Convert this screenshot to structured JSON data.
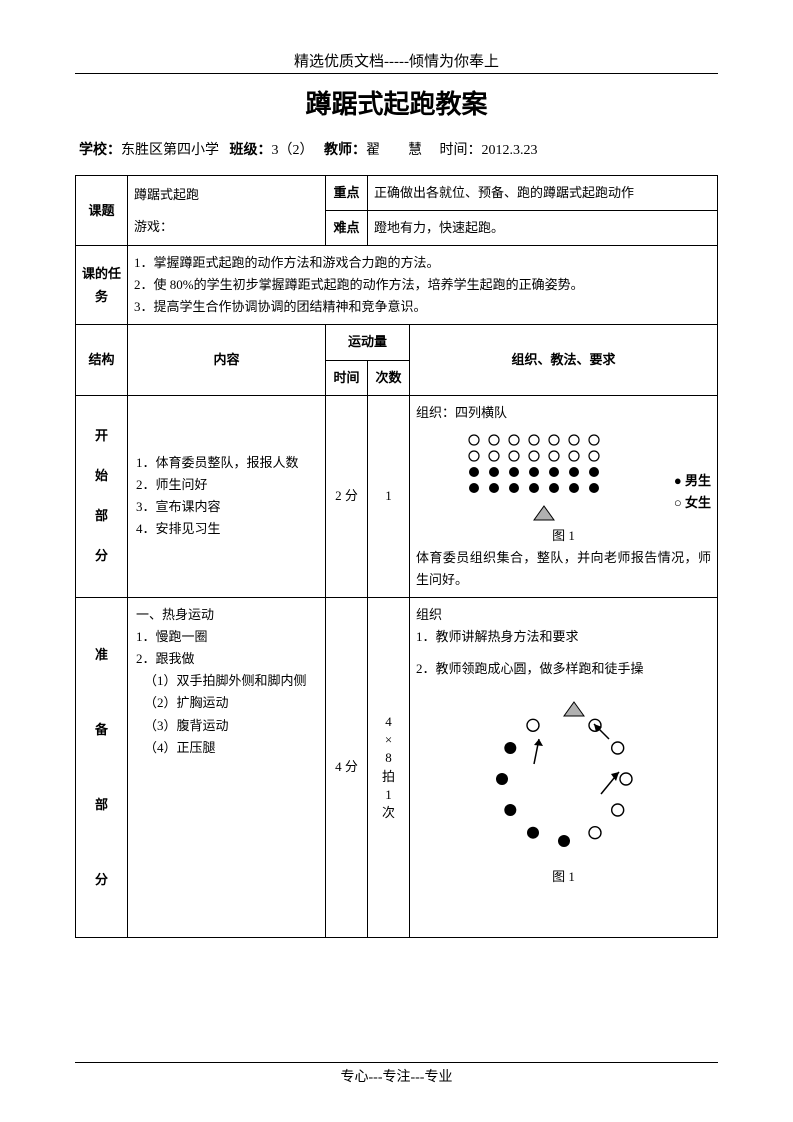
{
  "header": "精选优质文档-----倾情为你奉上",
  "title": "蹲踞式起跑教案",
  "meta": {
    "school_label": "学校：",
    "school": "东胜区第四小学",
    "class_label": "班级：",
    "class": "3（2）",
    "teacher_label": "教师：",
    "teacher": "翟　　慧",
    "time_label": "时间：",
    "time": "2012.3.23"
  },
  "row1": {
    "keti_label": "课题",
    "keti_line1": "蹲踞式起跑",
    "keti_line2": "游戏：",
    "zhongdian_label": "重点",
    "zhongdian": "正确做出各就位、预备、跑的蹲踞式起跑动作",
    "nandian_label": "难点",
    "nandian": "蹬地有力，快速起跑。"
  },
  "row2": {
    "label": "课的任务",
    "l1": "1．掌握蹲距式起跑的动作方法和游戏合力跑的方法。",
    "l2": "2．使 80%的学生初步掌握蹲距式起跑的动作方法，培养学生起跑的正确姿势。",
    "l3": "3．提高学生合作协调协调的团结精神和竞争意识。"
  },
  "header_row": {
    "jiegou": "结构",
    "neirong": "内容",
    "yundong": "运动量",
    "shijian": "时间",
    "cishu": "次数",
    "zuzhi": "组织、教法、要求"
  },
  "section1": {
    "label": "开始部分",
    "content": {
      "l1": "1．体育委员整队，报报人数",
      "l2": "2．师生问好",
      "l3": "3．宣布课内容",
      "l4": "4．安排见习生"
    },
    "time": "2 分",
    "count": "1",
    "org_title": "组织：四列横队",
    "legend_m": "男生",
    "legend_f": "女生",
    "fig": "图 1",
    "note": "体育委员组织集合，整队，并向老师报告情况，师生问好。"
  },
  "section2": {
    "label": "准备部分",
    "content": {
      "l1": "一、热身运动",
      "l2": "1．慢跑一圈",
      "l3": "2．跟我做",
      "l4": "（1）双手拍脚外侧和脚内侧",
      "l5": "（2）扩胸运动",
      "l6": "（3）腹背运动",
      "l7": "（4）正压腿"
    },
    "time": "4 分",
    "count": "4×8拍1次",
    "org": {
      "l1": "组织",
      "l2": "1．教师讲解热身方法和要求",
      "l3": "2．教师领跑成心圆，做多样跑和徒手操"
    },
    "fig": "图 1"
  },
  "footer": "专心---专注---专业",
  "diagram_colors": {
    "filled": "#000000",
    "empty_stroke": "#000000",
    "triangle_fill": "#b0b0b0",
    "triangle_stroke": "#000000"
  }
}
